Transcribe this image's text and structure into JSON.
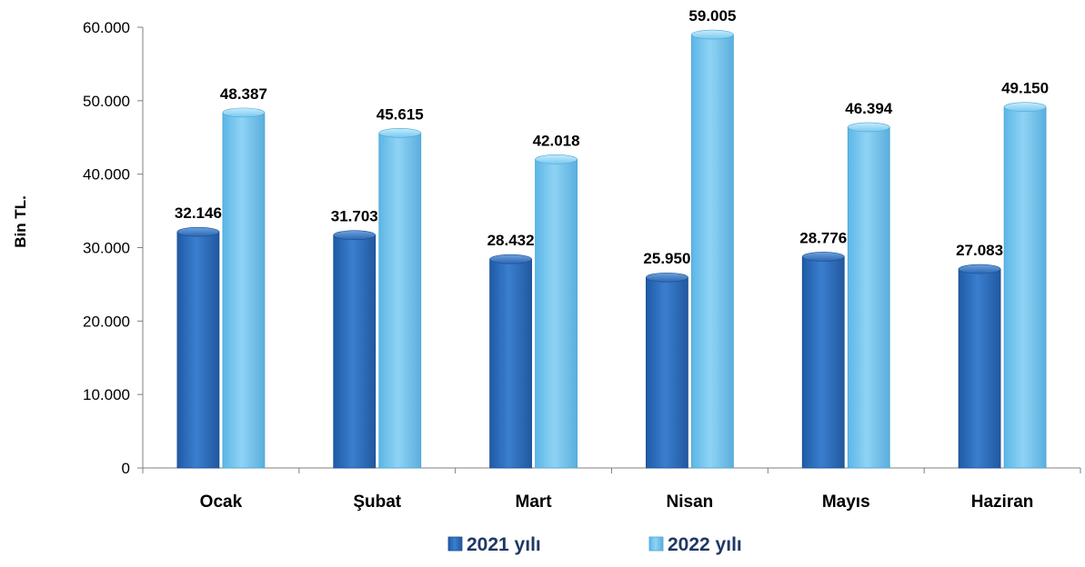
{
  "chart_data": {
    "type": "bar",
    "ylabel": "Bin TL.",
    "xlabel": "",
    "ylim": [
      0,
      60000
    ],
    "yticks": [
      "0",
      "10.000",
      "20.000",
      "30.000",
      "40.000",
      "50.000",
      "60.000"
    ],
    "categories": [
      "Ocak",
      "Şubat",
      "Mart",
      "Nisan",
      "Mayıs",
      "Haziran"
    ],
    "series": [
      {
        "name": "2021 yılı",
        "color": "#2e6bb8",
        "values": [
          32146,
          31703,
          28432,
          25950,
          28776,
          27083
        ],
        "labels": [
          "32.146",
          "31.703",
          "28.432",
          "25.950",
          "28.776",
          "27.083"
        ]
      },
      {
        "name": "2022 yılı",
        "color": "#6cc2ee",
        "values": [
          48387,
          45615,
          42018,
          59005,
          46394,
          49150
        ],
        "labels": [
          "48.387",
          "45.615",
          "42.018",
          "59.005",
          "46.394",
          "49.150"
        ]
      }
    ],
    "grid": false,
    "legend_position": "bottom"
  }
}
